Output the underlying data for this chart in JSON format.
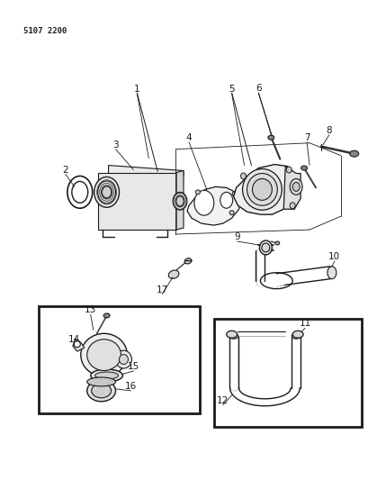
{
  "title_code": "5107 2200",
  "background_color": "#ffffff",
  "line_color": "#1a1a1a",
  "figsize": [
    4.1,
    5.33
  ],
  "dpi": 100
}
